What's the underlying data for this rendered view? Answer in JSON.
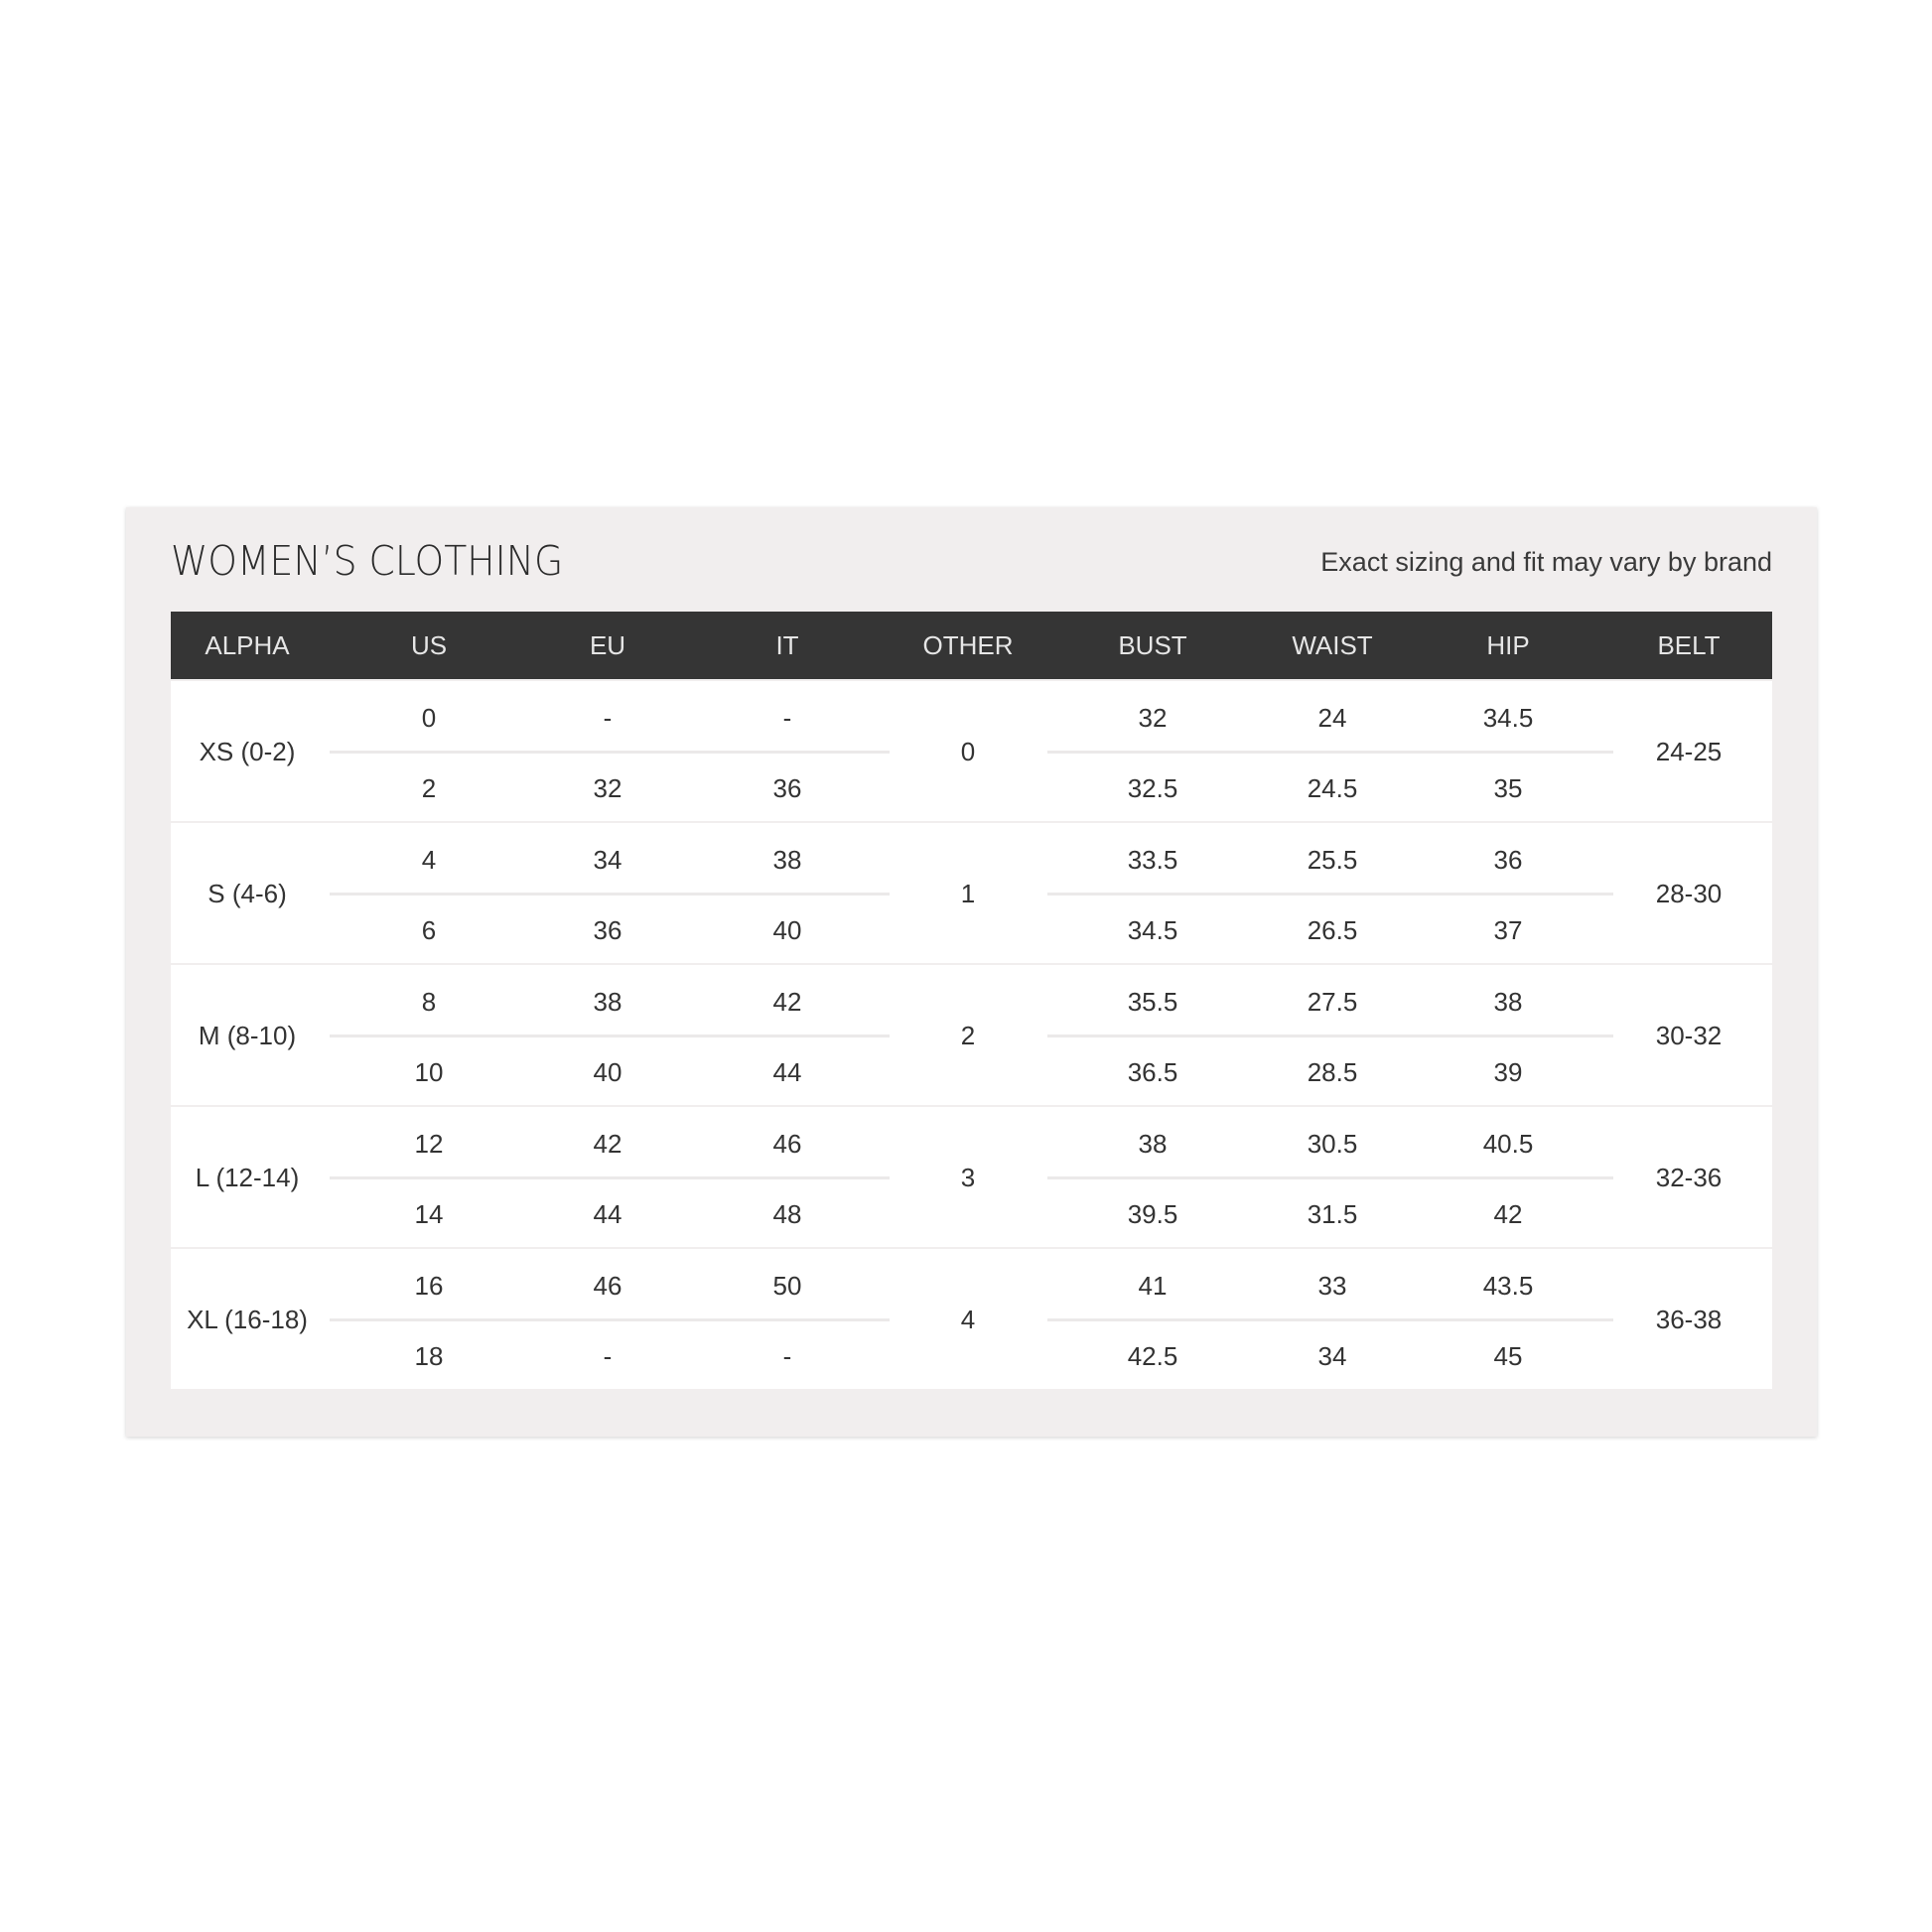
{
  "title": "WOMEN’S CLOTHING",
  "subtitle": "Exact sizing and fit may vary by brand",
  "columns": [
    "ALPHA",
    "US",
    "EU",
    "IT",
    "OTHER",
    "BUST",
    "WAIST",
    "HIP",
    "BELT"
  ],
  "groups": [
    {
      "alpha": "XS (0-2)",
      "other": "0",
      "belt": "24-25",
      "rows": [
        {
          "us": "0",
          "eu": "-",
          "it": "-",
          "bust": "32",
          "waist": "24",
          "hip": "34.5"
        },
        {
          "us": "2",
          "eu": "32",
          "it": "36",
          "bust": "32.5",
          "waist": "24.5",
          "hip": "35"
        }
      ]
    },
    {
      "alpha": "S (4-6)",
      "other": "1",
      "belt": "28-30",
      "rows": [
        {
          "us": "4",
          "eu": "34",
          "it": "38",
          "bust": "33.5",
          "waist": "25.5",
          "hip": "36"
        },
        {
          "us": "6",
          "eu": "36",
          "it": "40",
          "bust": "34.5",
          "waist": "26.5",
          "hip": "37"
        }
      ]
    },
    {
      "alpha": "M (8-10)",
      "other": "2",
      "belt": "30-32",
      "rows": [
        {
          "us": "8",
          "eu": "38",
          "it": "42",
          "bust": "35.5",
          "waist": "27.5",
          "hip": "38"
        },
        {
          "us": "10",
          "eu": "40",
          "it": "44",
          "bust": "36.5",
          "waist": "28.5",
          "hip": "39"
        }
      ]
    },
    {
      "alpha": "L (12-14)",
      "other": "3",
      "belt": "32-36",
      "rows": [
        {
          "us": "12",
          "eu": "42",
          "it": "46",
          "bust": "38",
          "waist": "30.5",
          "hip": "40.5"
        },
        {
          "us": "14",
          "eu": "44",
          "it": "48",
          "bust": "39.5",
          "waist": "31.5",
          "hip": "42"
        }
      ]
    },
    {
      "alpha": "XL (16-18)",
      "other": "4",
      "belt": "36-38",
      "rows": [
        {
          "us": "16",
          "eu": "46",
          "it": "50",
          "bust": "41",
          "waist": "33",
          "hip": "43.5"
        },
        {
          "us": "18",
          "eu": "-",
          "it": "-",
          "bust": "42.5",
          "waist": "34",
          "hip": "45"
        }
      ]
    }
  ]
}
